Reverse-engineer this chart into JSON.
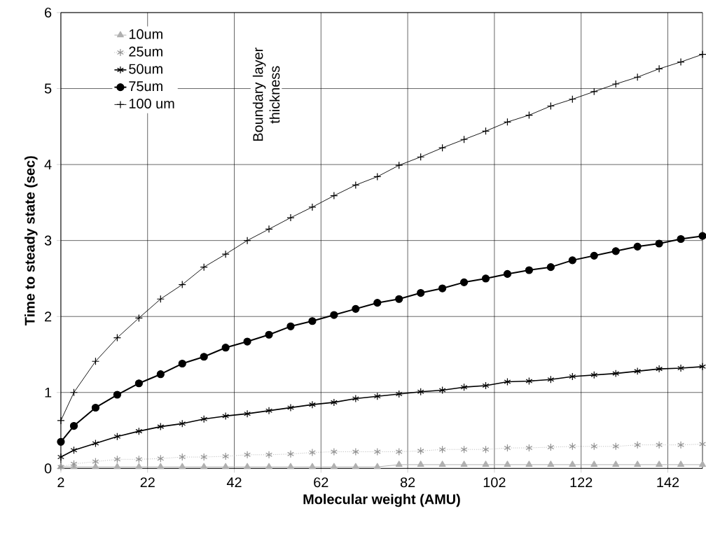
{
  "chart_data": {
    "type": "line",
    "xlabel": "Molecular weight (AMU)",
    "ylabel": "Time to steady state (sec)",
    "legend_title": "Boundary layer thickness",
    "x": [
      2,
      5,
      10,
      15,
      20,
      25,
      30,
      35,
      40,
      45,
      50,
      55,
      60,
      65,
      70,
      75,
      80,
      85,
      90,
      95,
      100,
      105,
      110,
      115,
      120,
      125,
      130,
      135,
      140,
      145,
      150
    ],
    "series": [
      {
        "name": "10um",
        "color": "#b0b0b0",
        "marker": "triangle",
        "line_style": "solid",
        "values": [
          0.02,
          0.02,
          0.02,
          0.02,
          0.02,
          0.02,
          0.02,
          0.02,
          0.02,
          0.02,
          0.02,
          0.02,
          0.02,
          0.02,
          0.02,
          0.02,
          0.05,
          0.05,
          0.05,
          0.05,
          0.05,
          0.05,
          0.05,
          0.05,
          0.05,
          0.05,
          0.05,
          0.05,
          0.05,
          0.05,
          0.05
        ]
      },
      {
        "name": "25um",
        "color": "#909090",
        "marker": "cross",
        "line_style": "dotted",
        "values": [
          0.02,
          0.06,
          0.09,
          0.12,
          0.12,
          0.13,
          0.15,
          0.15,
          0.16,
          0.18,
          0.18,
          0.19,
          0.21,
          0.22,
          0.22,
          0.22,
          0.22,
          0.23,
          0.25,
          0.25,
          0.25,
          0.27,
          0.27,
          0.28,
          0.29,
          0.29,
          0.29,
          0.31,
          0.31,
          0.31,
          0.32
        ]
      },
      {
        "name": "50um",
        "color": "#000000",
        "marker": "cross",
        "line_style": "solid",
        "values": [
          0.15,
          0.24,
          0.33,
          0.42,
          0.49,
          0.55,
          0.59,
          0.65,
          0.69,
          0.72,
          0.76,
          0.8,
          0.84,
          0.87,
          0.92,
          0.95,
          0.98,
          1.01,
          1.03,
          1.07,
          1.09,
          1.14,
          1.15,
          1.17,
          1.21,
          1.23,
          1.25,
          1.28,
          1.31,
          1.32,
          1.34
        ]
      },
      {
        "name": "75um",
        "color": "#000000",
        "marker": "circle",
        "line_style": "solid",
        "values": [
          0.35,
          0.56,
          0.8,
          0.97,
          1.12,
          1.24,
          1.38,
          1.47,
          1.59,
          1.67,
          1.76,
          1.87,
          1.94,
          2.02,
          2.1,
          2.18,
          2.23,
          2.31,
          2.37,
          2.45,
          2.5,
          2.56,
          2.61,
          2.65,
          2.74,
          2.8,
          2.86,
          2.92,
          2.96,
          3.02,
          3.06
        ]
      },
      {
        "name": "100 um",
        "color": "#000000",
        "marker": "plus",
        "line_style": "solid",
        "values": [
          0.63,
          1.0,
          1.41,
          1.72,
          1.98,
          2.23,
          2.42,
          2.65,
          2.82,
          3.0,
          3.15,
          3.3,
          3.44,
          3.59,
          3.73,
          3.84,
          3.99,
          4.1,
          4.22,
          4.33,
          4.44,
          4.56,
          4.65,
          4.77,
          4.86,
          4.96,
          5.06,
          5.15,
          5.26,
          5.35,
          5.45
        ]
      }
    ],
    "xlim": [
      2,
      150
    ],
    "ylim": [
      0,
      6
    ],
    "xticks": [
      2,
      22,
      42,
      62,
      82,
      102,
      122,
      142
    ],
    "yticks": [
      0,
      1,
      2,
      3,
      4,
      5,
      6
    ],
    "grid": true,
    "legend": "top left"
  }
}
